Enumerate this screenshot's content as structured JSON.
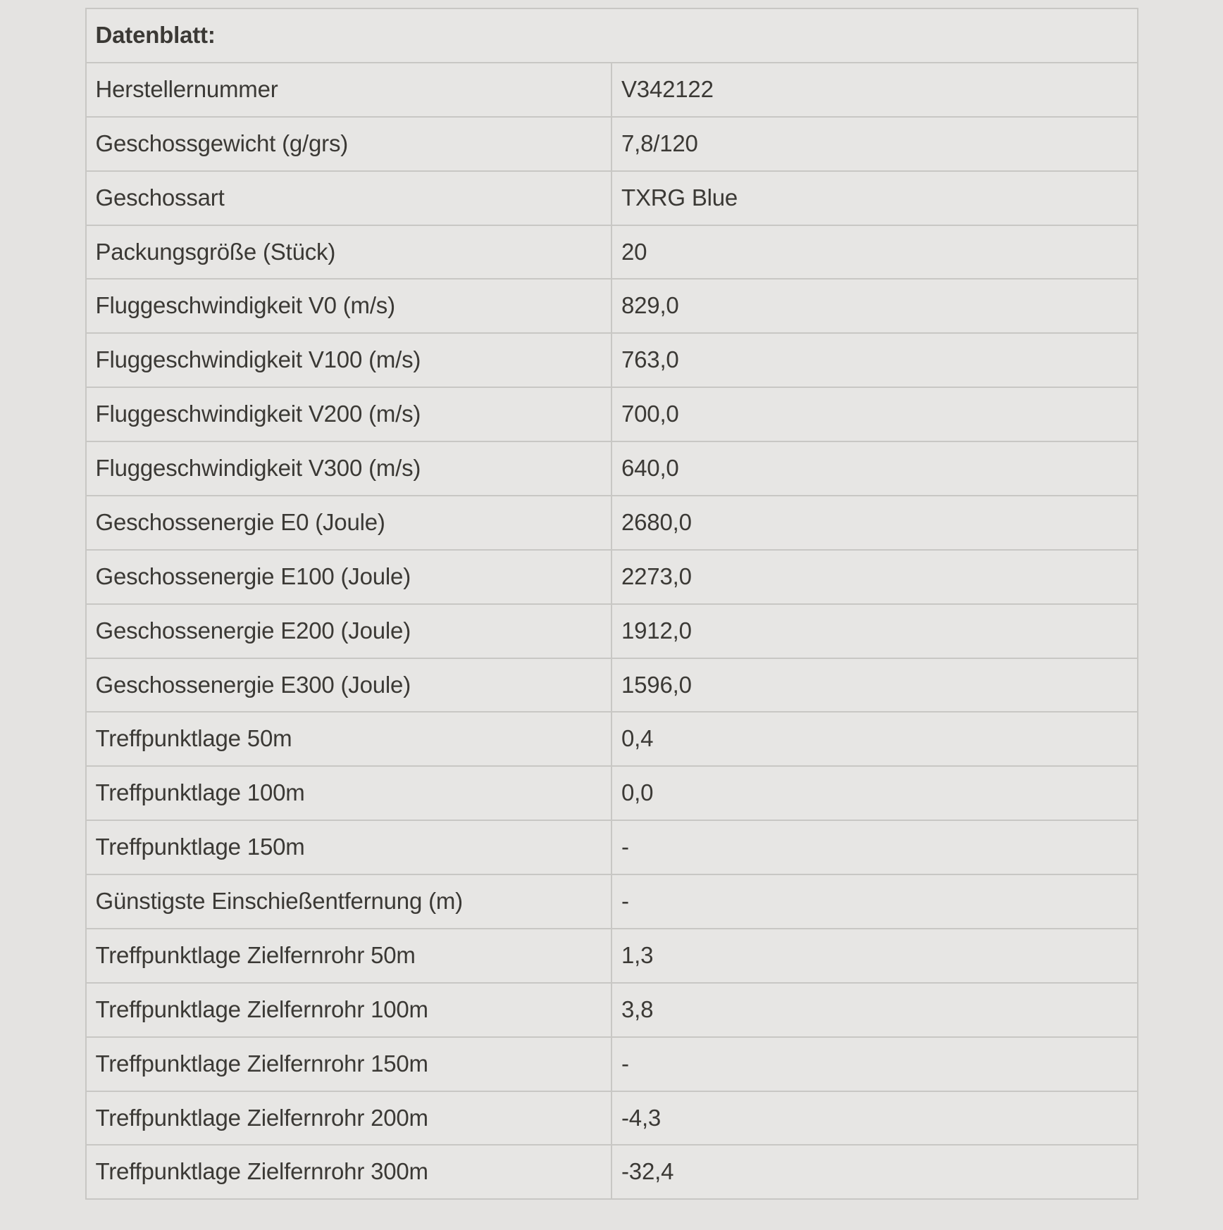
{
  "colors": {
    "page_background": "#e4e3e1",
    "cell_background": "#e7e6e4",
    "border": "#c8c7c4",
    "text": "#3b3935"
  },
  "datasheet": {
    "title": "Datenblatt:",
    "rows": [
      {
        "label": "Herstellernummer",
        "value": "V342122"
      },
      {
        "label": "Geschossgewicht (g/grs)",
        "value": "7,8/120"
      },
      {
        "label": "Geschossart",
        "value": "TXRG Blue"
      },
      {
        "label": "Packungsgröße (Stück)",
        "value": "20"
      },
      {
        "label": "Fluggeschwindigkeit V0 (m/s)",
        "value": "829,0"
      },
      {
        "label": "Fluggeschwindigkeit V100 (m/s)",
        "value": "763,0"
      },
      {
        "label": "Fluggeschwindigkeit V200 (m/s)",
        "value": "700,0"
      },
      {
        "label": "Fluggeschwindigkeit V300 (m/s)",
        "value": "640,0"
      },
      {
        "label": "Geschossenergie E0 (Joule)",
        "value": "2680,0"
      },
      {
        "label": "Geschossenergie E100 (Joule)",
        "value": "2273,0"
      },
      {
        "label": "Geschossenergie E200 (Joule)",
        "value": "1912,0"
      },
      {
        "label": "Geschossenergie E300 (Joule)",
        "value": "1596,0"
      },
      {
        "label": "Treffpunktlage 50m",
        "value": "0,4"
      },
      {
        "label": "Treffpunktlage 100m",
        "value": "0,0"
      },
      {
        "label": "Treffpunktlage 150m",
        "value": "-"
      },
      {
        "label": "Günstigste Einschießentfernung (m)",
        "value": "-"
      },
      {
        "label": "Treffpunktlage Zielfernrohr 50m",
        "value": "1,3"
      },
      {
        "label": "Treffpunktlage Zielfernrohr 100m",
        "value": "3,8"
      },
      {
        "label": "Treffpunktlage Zielfernrohr 150m",
        "value": "-"
      },
      {
        "label": "Treffpunktlage Zielfernrohr 200m",
        "value": "-4,3"
      },
      {
        "label": "Treffpunktlage Zielfernrohr 300m",
        "value": "-32,4"
      }
    ]
  }
}
